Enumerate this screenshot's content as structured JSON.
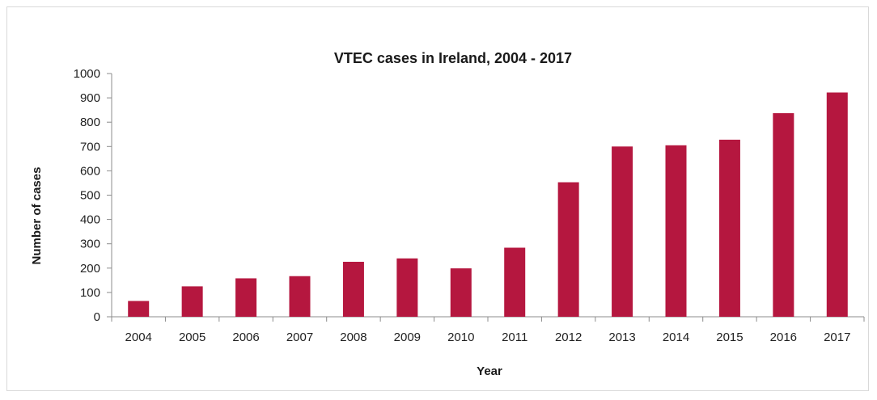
{
  "chart_data": {
    "type": "bar",
    "title": "VTEC cases in Ireland, 2004 - 2017",
    "xlabel": "Year",
    "ylabel": "Number of cases",
    "categories": [
      "2004",
      "2005",
      "2006",
      "2007",
      "2008",
      "2009",
      "2010",
      "2011",
      "2012",
      "2013",
      "2014",
      "2015",
      "2016",
      "2017"
    ],
    "values": [
      65,
      125,
      158,
      167,
      226,
      240,
      199,
      284,
      553,
      700,
      705,
      728,
      837,
      922
    ],
    "ylim": [
      0,
      1000
    ],
    "yticks": [
      0,
      100,
      200,
      300,
      400,
      500,
      600,
      700,
      800,
      900,
      1000
    ],
    "grid": false,
    "legend": "none",
    "colors": {
      "bar": "#b5173f",
      "axis": "#8c8c8c"
    }
  }
}
